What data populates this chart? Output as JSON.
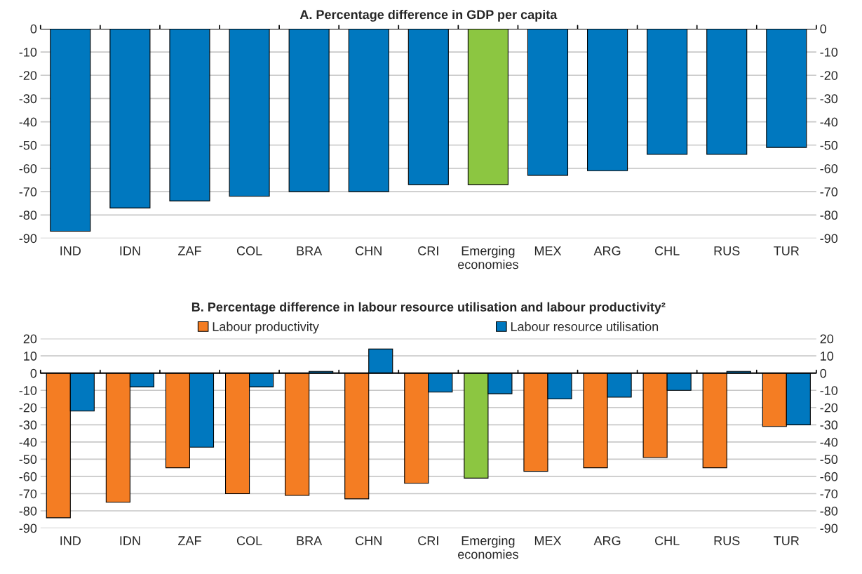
{
  "chart_data": [
    {
      "type": "bar",
      "title": "A. Percentage difference in GDP per capita",
      "categories": [
        "IND",
        "IDN",
        "ZAF",
        "COL",
        "BRA",
        "CHN",
        "CRI",
        "Emerging economies",
        "MEX",
        "ARG",
        "CHL",
        "RUS",
        "TUR"
      ],
      "values": [
        -87,
        -77,
        -74,
        -72,
        -70,
        -70,
        -67,
        -67,
        -63,
        -61,
        -54,
        -54,
        -51
      ],
      "colors": [
        "#0078bf",
        "#0078bf",
        "#0078bf",
        "#0078bf",
        "#0078bf",
        "#0078bf",
        "#0078bf",
        "#8cc641",
        "#0078bf",
        "#0078bf",
        "#0078bf",
        "#0078bf",
        "#0078bf"
      ],
      "ylim": [
        -90,
        0
      ],
      "yticks": [
        -90,
        -80,
        -70,
        -60,
        -50,
        -40,
        -30,
        -20,
        -10,
        0
      ],
      "y2lim": [
        -90,
        0
      ],
      "y2ticks": [
        -90,
        -80,
        -70,
        -60,
        -50,
        -40,
        -30,
        -20,
        -10,
        0
      ],
      "grid": "y"
    },
    {
      "type": "bar",
      "title": "B. Percentage difference in labour resource utilisation and labour productivity²",
      "categories": [
        "IND",
        "IDN",
        "ZAF",
        "COL",
        "BRA",
        "CHN",
        "CRI",
        "Emerging economies",
        "MEX",
        "ARG",
        "CHL",
        "RUS",
        "TUR"
      ],
      "series": [
        {
          "name": "Labour productivity",
          "color": "#f47d23",
          "colors": [
            "#f47d23",
            "#f47d23",
            "#f47d23",
            "#f47d23",
            "#f47d23",
            "#f47d23",
            "#f47d23",
            "#8cc641",
            "#f47d23",
            "#f47d23",
            "#f47d23",
            "#f47d23",
            "#f47d23"
          ],
          "values": [
            -84,
            -75,
            -55,
            -70,
            -71,
            -73,
            -64,
            -61,
            -57,
            -55,
            -49,
            -55,
            -31
          ]
        },
        {
          "name": "Labour resource utilisation",
          "color": "#0078bf",
          "values": [
            -22,
            -8,
            -43,
            -8,
            1,
            14,
            -11,
            -12,
            -15,
            -14,
            -10,
            1,
            -30
          ]
        }
      ],
      "ylim": [
        -90,
        20
      ],
      "yticks": [
        -90,
        -80,
        -70,
        -60,
        -50,
        -40,
        -30,
        -20,
        -10,
        0,
        10,
        20
      ],
      "y2lim": [
        -90,
        20
      ],
      "y2ticks": [
        -90,
        -80,
        -70,
        -60,
        -50,
        -40,
        -30,
        -20,
        -10,
        0,
        10,
        20
      ],
      "grid": "y",
      "legend": "top"
    }
  ]
}
